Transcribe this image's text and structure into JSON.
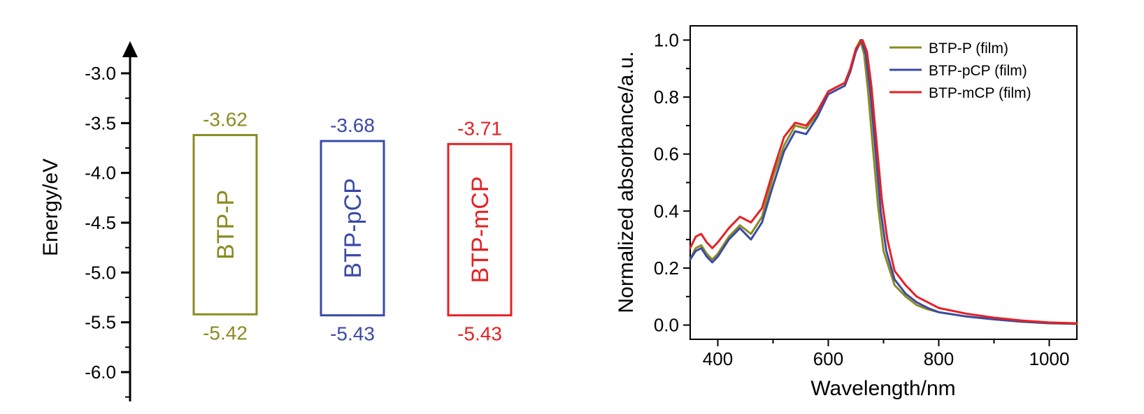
{
  "chart_data": [
    {
      "type": "bar",
      "subtype": "energy-level-diagram",
      "ylabel": "Energy/eV",
      "ylim": [
        -6.3,
        -2.7
      ],
      "y_ticks": [
        -3.0,
        -3.5,
        -4.0,
        -4.5,
        -5.0,
        -5.5,
        -6.0
      ],
      "y_tick_labels": [
        "-3.0",
        "-3.5",
        "-4.0",
        "-4.5",
        "-5.0",
        "-5.5",
        "-6.0"
      ],
      "axis_arrow": "up",
      "materials": [
        {
          "name": "BTP-P",
          "lumo": -3.62,
          "homo": -5.42,
          "lumo_label": "-3.62",
          "homo_label": "-5.42",
          "color": "#8b8b22"
        },
        {
          "name": "BTP-pCP",
          "lumo": -3.68,
          "homo": -5.43,
          "lumo_label": "-3.68",
          "homo_label": "-5.43",
          "color": "#3a4aa6"
        },
        {
          "name": "BTP-mCP",
          "lumo": -3.71,
          "homo": -5.43,
          "lumo_label": "-3.71",
          "homo_label": "-5.43",
          "color": "#e62124"
        }
      ]
    },
    {
      "type": "line",
      "xlabel": "Wavelength/nm",
      "ylabel": "Normalized absorbance/a.u.",
      "xlim": [
        350,
        1050
      ],
      "ylim": [
        -0.05,
        1.05
      ],
      "x_ticks": [
        400,
        600,
        800,
        1000
      ],
      "x_tick_labels": [
        "400",
        "600",
        "800",
        "1000"
      ],
      "y_ticks": [
        0.0,
        0.2,
        0.4,
        0.6,
        0.8,
        1.0
      ],
      "y_tick_labels": [
        "0.0",
        "0.2",
        "0.4",
        "0.6",
        "0.8",
        "1.0"
      ],
      "legend_position": "top-right",
      "grid": false,
      "series": [
        {
          "name": "BTP-P (film)",
          "color": "#8b8b22",
          "x": [
            350,
            360,
            370,
            380,
            390,
            400,
            420,
            440,
            460,
            480,
            500,
            520,
            540,
            560,
            580,
            600,
            620,
            630,
            640,
            650,
            658,
            665,
            672,
            680,
            690,
            700,
            720,
            740,
            760,
            780,
            800,
            850,
            900,
            950,
            1000,
            1050
          ],
          "y": [
            0.23,
            0.27,
            0.28,
            0.25,
            0.23,
            0.25,
            0.31,
            0.35,
            0.32,
            0.38,
            0.52,
            0.63,
            0.7,
            0.69,
            0.74,
            0.82,
            0.84,
            0.85,
            0.9,
            0.97,
            1.0,
            0.95,
            0.82,
            0.64,
            0.42,
            0.26,
            0.14,
            0.1,
            0.07,
            0.055,
            0.045,
            0.03,
            0.02,
            0.012,
            0.006,
            0.004
          ]
        },
        {
          "name": "BTP-pCP (film)",
          "color": "#3a4aa6",
          "x": [
            350,
            360,
            370,
            380,
            390,
            400,
            420,
            440,
            460,
            480,
            500,
            520,
            540,
            560,
            580,
            600,
            620,
            630,
            640,
            650,
            660,
            668,
            676,
            685,
            695,
            705,
            720,
            740,
            760,
            780,
            800,
            850,
            900,
            950,
            1000,
            1050
          ],
          "y": [
            0.23,
            0.26,
            0.27,
            0.24,
            0.22,
            0.24,
            0.3,
            0.34,
            0.3,
            0.36,
            0.49,
            0.61,
            0.68,
            0.67,
            0.73,
            0.81,
            0.83,
            0.84,
            0.89,
            0.96,
            1.0,
            0.95,
            0.82,
            0.62,
            0.4,
            0.26,
            0.16,
            0.11,
            0.08,
            0.06,
            0.045,
            0.03,
            0.02,
            0.012,
            0.007,
            0.005
          ]
        },
        {
          "name": "BTP-mCP (film)",
          "color": "#e62124",
          "x": [
            350,
            360,
            370,
            380,
            390,
            400,
            420,
            440,
            460,
            480,
            500,
            520,
            540,
            560,
            580,
            600,
            620,
            630,
            640,
            650,
            662,
            670,
            678,
            687,
            697,
            707,
            720,
            740,
            760,
            780,
            800,
            850,
            900,
            950,
            1000,
            1050
          ],
          "y": [
            0.27,
            0.31,
            0.32,
            0.29,
            0.27,
            0.29,
            0.34,
            0.38,
            0.36,
            0.41,
            0.54,
            0.66,
            0.71,
            0.7,
            0.75,
            0.82,
            0.84,
            0.85,
            0.9,
            0.97,
            1.0,
            0.96,
            0.84,
            0.65,
            0.44,
            0.3,
            0.19,
            0.14,
            0.1,
            0.08,
            0.06,
            0.04,
            0.026,
            0.016,
            0.009,
            0.006
          ]
        }
      ]
    }
  ]
}
